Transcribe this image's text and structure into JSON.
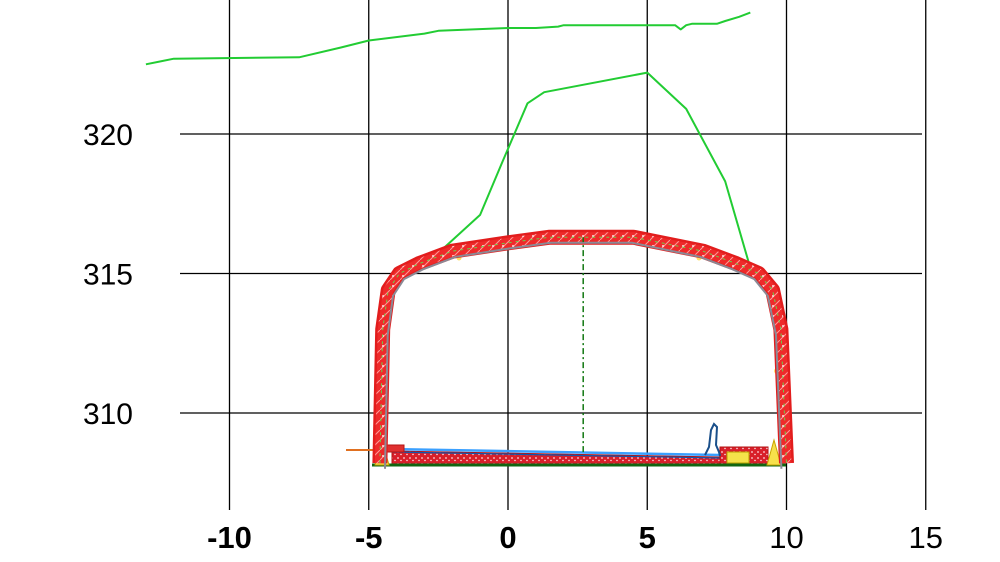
{
  "chart_data": {
    "type": "line",
    "title": "",
    "xlabel": "",
    "ylabel": "",
    "xlim": [
      -13,
      15
    ],
    "ylim": [
      307,
      323
    ],
    "grid": true,
    "x_ticks": [
      -10,
      -5,
      0,
      5,
      10,
      15
    ],
    "x_tick_labels": [
      "-10",
      "-5",
      "0",
      "5",
      "10",
      "15"
    ],
    "y_ticks": [
      310,
      315,
      320
    ],
    "y_tick_labels": [
      "310",
      "315",
      "320"
    ],
    "series": [
      {
        "role": "terrain-surface",
        "color": "#22cc33",
        "x": [
          -13,
          -12.5,
          -12,
          -7.5,
          -6,
          -5,
          -3,
          -2.5,
          0,
          0.5,
          1,
          1.8,
          2,
          6,
          6.2,
          6.4,
          6.6,
          7.5,
          7.8,
          8.3,
          8.7
        ],
        "y": [
          322.5,
          322.6,
          322.7,
          322.75,
          323.1,
          323.35,
          323.6,
          323.7,
          323.8,
          323.8,
          323.8,
          323.85,
          323.9,
          323.9,
          323.75,
          323.9,
          323.95,
          323.95,
          324.05,
          324.2,
          324.35
        ]
      },
      {
        "role": "green-profile-line",
        "color": "#22cc33",
        "x": [
          -3.2,
          -1,
          -0.2,
          0.7,
          1.3,
          5,
          6.4,
          7.8,
          8.7
        ],
        "y": [
          315.1,
          317.1,
          319,
          321.1,
          321.5,
          322.2,
          320.9,
          318.3,
          315.2
        ]
      },
      {
        "role": "tunnel-lining",
        "color": "#ee2222",
        "x": [
          -4.6,
          -4.5,
          -4.3,
          -3.9,
          -3.2,
          -2,
          0,
          1.5,
          4.5,
          7,
          8.2,
          9,
          9.5,
          9.8,
          10
        ],
        "y": [
          308.2,
          313,
          314.4,
          315,
          315.35,
          315.8,
          316.1,
          316.3,
          316.3,
          315.8,
          315.35,
          315,
          314.4,
          313,
          308.2
        ]
      },
      {
        "role": "centerline",
        "color": "#117711",
        "x": [
          2.7,
          2.7
        ],
        "y": [
          308.6,
          316.3
        ]
      }
    ]
  }
}
